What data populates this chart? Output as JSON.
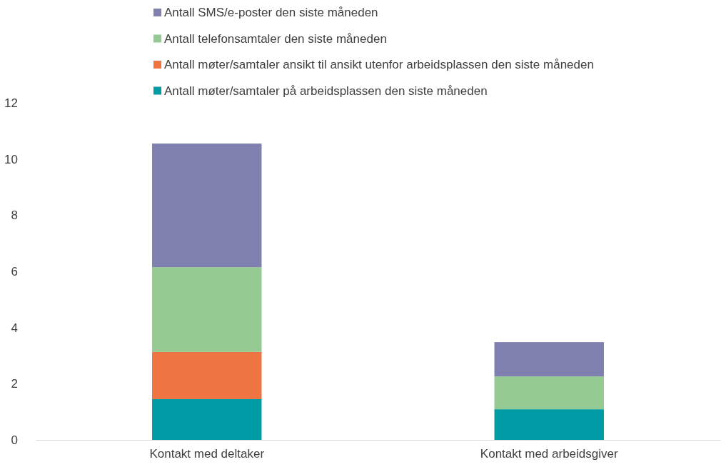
{
  "chart_data": {
    "type": "bar",
    "stacked": true,
    "categories": [
      "Kontakt med deltaker",
      "Kontakt med arbeidsgiver"
    ],
    "series": [
      {
        "name": "Antall møter/samtaler på arbeidsplassen den siste måneden",
        "color": "#009ca6",
        "values": [
          1.45,
          1.09
        ]
      },
      {
        "name": "Antall møter/samtaler ansikt til ansikt utenfor arbeidsplassen den siste måneden",
        "color": "#ef7444",
        "values": [
          1.68,
          0
        ]
      },
      {
        "name": "Antall telefonsamtaler den siste måneden",
        "color": "#96ca93",
        "values": [
          3.02,
          1.17
        ]
      },
      {
        "name": "Antall SMS/e-poster den siste måneden",
        "color": "#8080b0",
        "values": [
          4.4,
          1.22
        ]
      }
    ],
    "ylim": [
      0,
      12
    ],
    "yticks": [
      0,
      2,
      4,
      6,
      8,
      10,
      12
    ],
    "grid": false,
    "legend": "top"
  }
}
